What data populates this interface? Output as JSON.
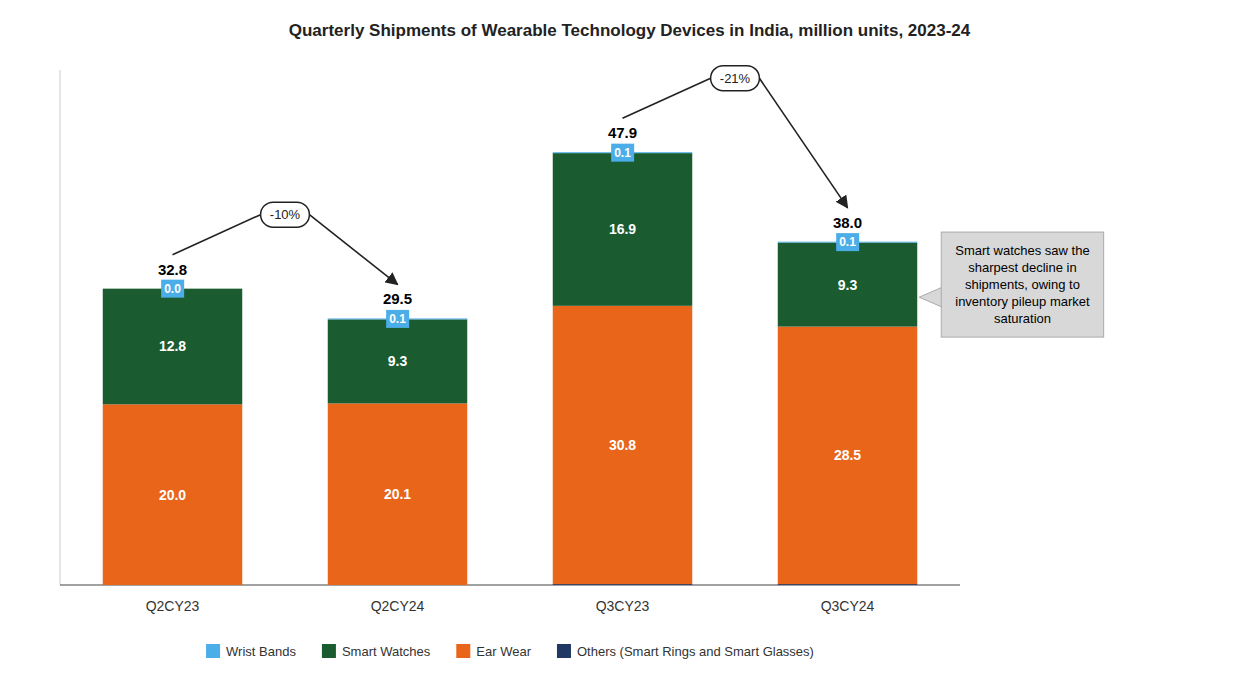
{
  "chart_data": {
    "type": "bar",
    "stacked": true,
    "title": "Quarterly Shipments of Wearable Technology Devices in India, million units, 2023-24",
    "categories": [
      "Q2CY23",
      "Q2CY24",
      "Q3CY23",
      "Q3CY24"
    ],
    "series": [
      {
        "name": "Others (Smart Rings and Smart Glasses)",
        "color": "#1F3864",
        "values": [
          0.0,
          0.0,
          0.1,
          0.1
        ],
        "data_labels": false
      },
      {
        "name": "Ear Wear",
        "color": "#E8651A",
        "values": [
          20.0,
          20.1,
          30.8,
          28.5
        ],
        "value_labels": [
          "20.0",
          "20.1",
          "30.8",
          "28.5"
        ],
        "data_labels": true
      },
      {
        "name": "Smart Watches",
        "color": "#1A5C30",
        "values": [
          12.8,
          9.3,
          16.9,
          9.3
        ],
        "data_labels": true
      },
      {
        "name": "Wrist Bands",
        "color": "#4BAEE8",
        "values": [
          0.0,
          0.1,
          0.1,
          0.1
        ],
        "value_labels": [
          "0.0",
          "0.1",
          "0.1",
          "0.1"
        ],
        "data_labels": true
      }
    ],
    "totals": {
      "values": [
        32.8,
        29.5,
        47.9,
        38.0
      ],
      "value_labels": [
        "32.8",
        "29.5",
        "47.9",
        "38.0"
      ]
    },
    "annotations": [
      {
        "text": "-10%",
        "from": "Q2CY23",
        "to": "Q2CY24"
      },
      {
        "text": "-21%",
        "from": "Q3CY23",
        "to": "Q3CY24"
      }
    ],
    "callout": {
      "text": "Smart watches saw the\nsharpest decline in\nshipments, owing to\ninventory pileup market\nsaturation",
      "category": "Q3CY24",
      "series": "Smart Watches"
    },
    "ylim": [
      0,
      57
    ],
    "yticks": [],
    "grid": false,
    "legend": "bottom",
    "tick_labels": "x"
  }
}
